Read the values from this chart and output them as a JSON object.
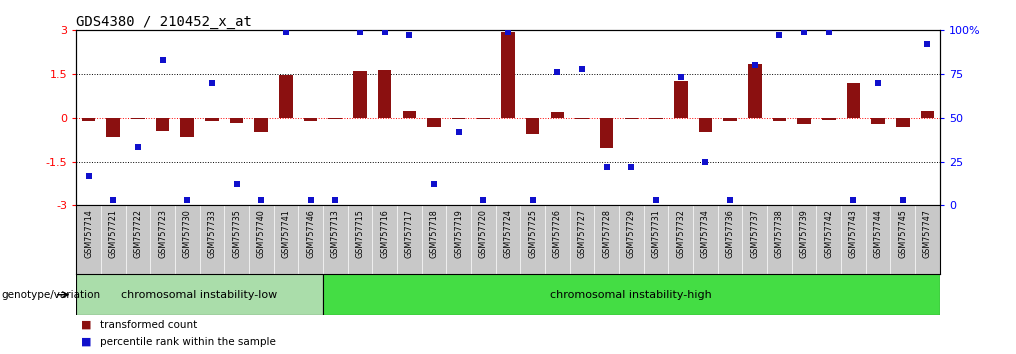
{
  "title": "GDS4380 / 210452_x_at",
  "samples": [
    "GSM757714",
    "GSM757721",
    "GSM757722",
    "GSM757723",
    "GSM757730",
    "GSM757733",
    "GSM757735",
    "GSM757740",
    "GSM757741",
    "GSM757746",
    "GSM757713",
    "GSM757715",
    "GSM757716",
    "GSM757717",
    "GSM757718",
    "GSM757719",
    "GSM757720",
    "GSM757724",
    "GSM757725",
    "GSM757726",
    "GSM757727",
    "GSM757728",
    "GSM757729",
    "GSM757731",
    "GSM757732",
    "GSM757734",
    "GSM757736",
    "GSM757737",
    "GSM757738",
    "GSM757739",
    "GSM757742",
    "GSM757743",
    "GSM757744",
    "GSM757745",
    "GSM757747"
  ],
  "bar_values": [
    -0.12,
    -0.65,
    -0.06,
    -0.45,
    -0.65,
    -0.12,
    -0.18,
    -0.5,
    1.45,
    -0.12,
    -0.05,
    1.6,
    1.65,
    0.22,
    -0.32,
    -0.05,
    -0.05,
    2.95,
    -0.55,
    0.18,
    -0.05,
    -1.05,
    -0.05,
    -0.05,
    1.25,
    -0.5,
    -0.1,
    1.85,
    -0.1,
    -0.22,
    -0.08,
    1.2,
    -0.22,
    -0.32,
    0.22
  ],
  "percentile_values": [
    17,
    3,
    33,
    83,
    3,
    70,
    12,
    3,
    99,
    3,
    3,
    99,
    99,
    97,
    12,
    42,
    3,
    99,
    3,
    76,
    78,
    22,
    22,
    3,
    73,
    25,
    3,
    80,
    97,
    99,
    99,
    3,
    70,
    3,
    92
  ],
  "group1_label": "chromosomal instability-low",
  "group1_count": 10,
  "group2_label": "chromosomal instability-high",
  "group2_count": 25,
  "group_label": "genotype/variation",
  "bar_color": "#8B1010",
  "dot_color": "#1010CC",
  "ylim": [
    -3,
    3
  ],
  "y2lim": [
    0,
    100
  ],
  "yticks": [
    -3,
    -1.5,
    0,
    1.5,
    3
  ],
  "y2ticks": [
    0,
    25,
    50,
    75,
    100
  ],
  "dotted_lines": [
    -1.5,
    1.5
  ],
  "legend_bar": "transformed count",
  "legend_dot": "percentile rank within the sample",
  "title_fontsize": 10,
  "tick_fontsize": 8,
  "bar_width": 0.55,
  "group1_color": "#AADDAA",
  "group2_color": "#44DD44",
  "xtick_bg": "#C8C8C8"
}
